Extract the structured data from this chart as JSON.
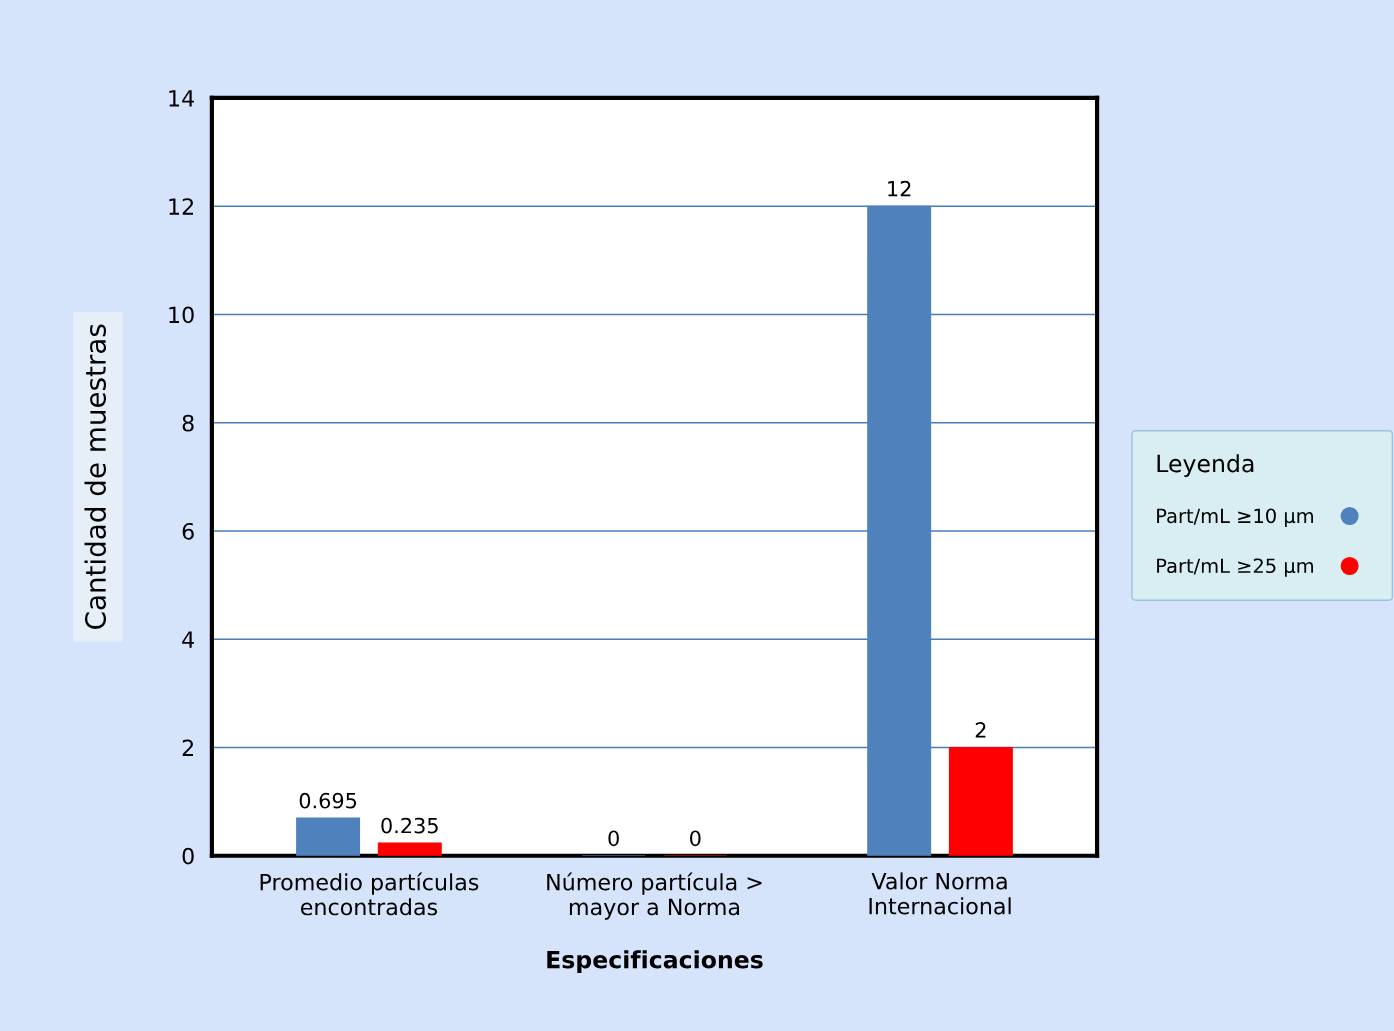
{
  "chart_data": {
    "type": "bar",
    "xlabel": "Especificaciones",
    "ylabel": "Cantidad de muestras",
    "legend_title": "Leyenda",
    "categories": [
      "Promedio partículas\nencontradas",
      "Número partícula >\nmayor a Norma",
      "Valor Norma\nInternacional"
    ],
    "series": [
      {
        "name": "Part/mL ≥10 µm",
        "color": "#4f81bd",
        "values": [
          0.695,
          0,
          12
        ]
      },
      {
        "name": "Part/mL ≥25 µm",
        "color": "#ff0000",
        "values": [
          0.235,
          0,
          2
        ]
      }
    ],
    "ylim": [
      0,
      14
    ],
    "yticks": [
      0,
      2,
      4,
      6,
      8,
      10,
      12,
      14
    ],
    "grid": "y",
    "legend": "right",
    "data_labels": true
  }
}
